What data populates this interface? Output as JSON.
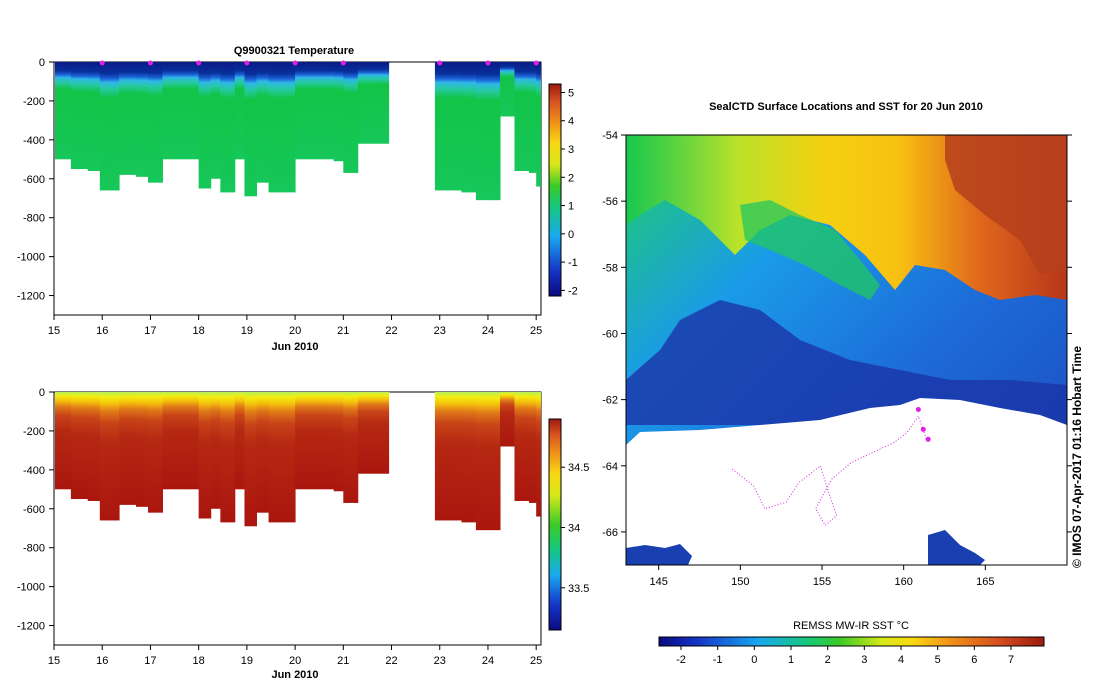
{
  "chart_data": [
    {
      "type": "heatmap",
      "title": "Q9900321  Temperature",
      "xlabel": "Jun 2010",
      "ylabel": "",
      "xlim": [
        15,
        25.1
      ],
      "ylim": [
        -1300,
        0
      ],
      "x_ticks": [
        "15",
        "16",
        "17",
        "18",
        "19",
        "20",
        "21",
        "22",
        "23",
        "24",
        "25"
      ],
      "y_ticks": [
        "0",
        "-200",
        "-400",
        "-600",
        "-800",
        "-1000",
        "-1200"
      ],
      "colorbar": {
        "range": [
          -2.2,
          5.3
        ],
        "ticks": [
          "5",
          "4",
          "3",
          "2",
          "1",
          "0",
          "-1",
          "-2"
        ]
      },
      "profile_bottom_depths": [
        {
          "x": 15.0,
          "depth": 500
        },
        {
          "x": 15.35,
          "depth": 550
        },
        {
          "x": 15.7,
          "depth": 560
        },
        {
          "x": 15.95,
          "depth": 660
        },
        {
          "x": 16.35,
          "depth": 580
        },
        {
          "x": 16.7,
          "depth": 590
        },
        {
          "x": 16.95,
          "depth": 620
        },
        {
          "x": 17.25,
          "depth": 500
        },
        {
          "x": 17.7,
          "depth": 500
        },
        {
          "x": 18.0,
          "depth": 650
        },
        {
          "x": 18.25,
          "depth": 600
        },
        {
          "x": 18.45,
          "depth": 670
        },
        {
          "x": 18.75,
          "depth": 500
        },
        {
          "x": 18.95,
          "depth": 690
        },
        {
          "x": 19.2,
          "depth": 620
        },
        {
          "x": 19.45,
          "depth": 670
        },
        {
          "x": 20.0,
          "depth": 500
        },
        {
          "x": 20.8,
          "depth": 510
        },
        {
          "x": 21.0,
          "depth": 570
        },
        {
          "x": 21.3,
          "depth": 420
        },
        {
          "x": 22.9,
          "depth": 660
        },
        {
          "x": 23.45,
          "depth": 670
        },
        {
          "x": 23.75,
          "depth": 710
        },
        {
          "x": 24.05,
          "depth": 710
        },
        {
          "x": 24.25,
          "depth": 280
        },
        {
          "x": 24.55,
          "depth": 560
        },
        {
          "x": 24.85,
          "depth": 570
        },
        {
          "x": 25.0,
          "depth": 640
        }
      ],
      "gap": [
        21.95,
        22.85
      ],
      "profile_markers_x": [
        16.0,
        17.0,
        18.0,
        19.0,
        20.0,
        21.0,
        23.0,
        24.0,
        25.0
      ]
    },
    {
      "type": "heatmap",
      "title": "",
      "xlabel": "Jun 2010",
      "ylabel": "",
      "xlim": [
        15,
        25.1
      ],
      "ylim": [
        -1300,
        0
      ],
      "x_ticks": [
        "15",
        "16",
        "17",
        "18",
        "19",
        "20",
        "21",
        "22",
        "23",
        "24",
        "25"
      ],
      "y_ticks": [
        "0",
        "-200",
        "-400",
        "-600",
        "-800",
        "-1000",
        "-1200"
      ],
      "colorbar": {
        "range": [
          33.15,
          34.9
        ],
        "ticks": [
          "34.5",
          "34",
          "33.5"
        ]
      }
    },
    {
      "type": "heatmap",
      "title": "SealCTD Surface Locations and SST for 20 Jun 2010",
      "xlabel": "",
      "ylabel": "",
      "xlim": [
        143,
        170
      ],
      "ylim": [
        -67,
        -54
      ],
      "x_ticks": [
        "145",
        "150",
        "155",
        "160",
        "165"
      ],
      "y_ticks": [
        "-54",
        "-56",
        "-58",
        "-60",
        "-62",
        "-64",
        "-66"
      ],
      "colorbar": {
        "label": "REMSS MW-IR SST °C",
        "range": [
          -2.6,
          7.9
        ],
        "ticks": [
          "-2",
          "-1",
          "0",
          "1",
          "2",
          "3",
          "4",
          "5",
          "6",
          "7"
        ]
      },
      "credit": "© IMOS 07-Apr-2017 01:16 Hobart Time"
    }
  ]
}
